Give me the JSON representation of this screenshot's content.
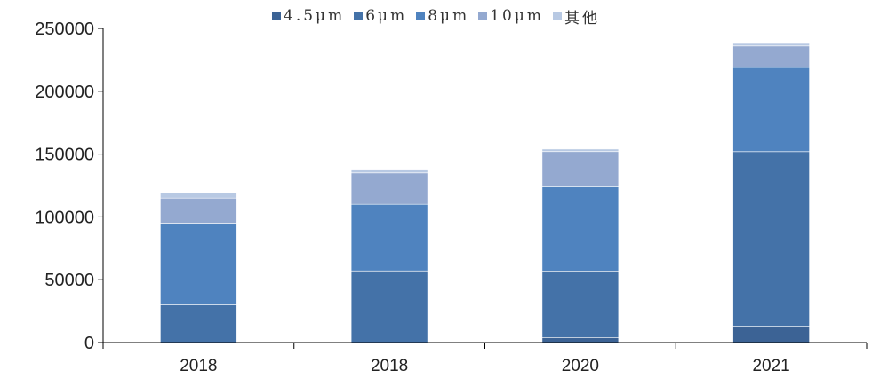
{
  "chart_data": {
    "type": "bar",
    "stacked": true,
    "title": "",
    "xlabel": "",
    "ylabel": "",
    "categories": [
      "2018",
      "2018",
      "2020",
      "2021"
    ],
    "ylim": [
      0,
      250000
    ],
    "yticks": [
      0,
      50000,
      100000,
      150000,
      200000,
      250000
    ],
    "grid": false,
    "legend_position": "top-center",
    "series": [
      {
        "name": "4.5μm",
        "label": "4.5μm",
        "color": "#3c6395",
        "values": [
          0,
          0,
          4000,
          13000
        ]
      },
      {
        "name": "6μm",
        "label": "6μm",
        "color": "#4472a8",
        "values": [
          30000,
          57000,
          53000,
          139000
        ]
      },
      {
        "name": "8μm",
        "label": "8μm",
        "color": "#4f83bf",
        "values": [
          65000,
          53000,
          67000,
          67000
        ]
      },
      {
        "name": "10μm",
        "label": "10μm",
        "color": "#94a9d0",
        "values": [
          20000,
          25000,
          28000,
          17000
        ]
      },
      {
        "name": "其他",
        "label": "其他",
        "color": "#b8c9e3",
        "values": [
          4000,
          3000,
          2000,
          2000
        ]
      }
    ]
  }
}
